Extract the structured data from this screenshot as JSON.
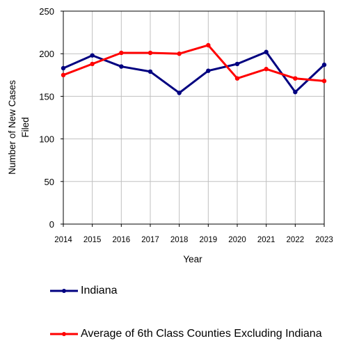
{
  "chart_data": {
    "type": "line",
    "categories": [
      "2014",
      "2015",
      "2016",
      "2017",
      "2018",
      "2019",
      "2020",
      "2021",
      "2022",
      "2023"
    ],
    "series": [
      {
        "name": "Indiana",
        "color": "#000080",
        "values": [
          183,
          198,
          185,
          179,
          154,
          180,
          188,
          202,
          155,
          187
        ]
      },
      {
        "name": "Average of 6th Class Counties Excluding Indiana",
        "color": "#ff0000",
        "values": [
          175,
          188,
          201,
          201,
          200,
          210,
          171,
          182,
          171,
          168
        ]
      }
    ],
    "xlabel": "Year",
    "ylabel_lines": [
      "Number of New Cases",
      "Filed"
    ],
    "ylim": [
      0,
      250
    ],
    "yticks": [
      "0",
      "50",
      "100",
      "150",
      "200",
      "250"
    ],
    "grid": true,
    "legend_position": "bottom"
  }
}
